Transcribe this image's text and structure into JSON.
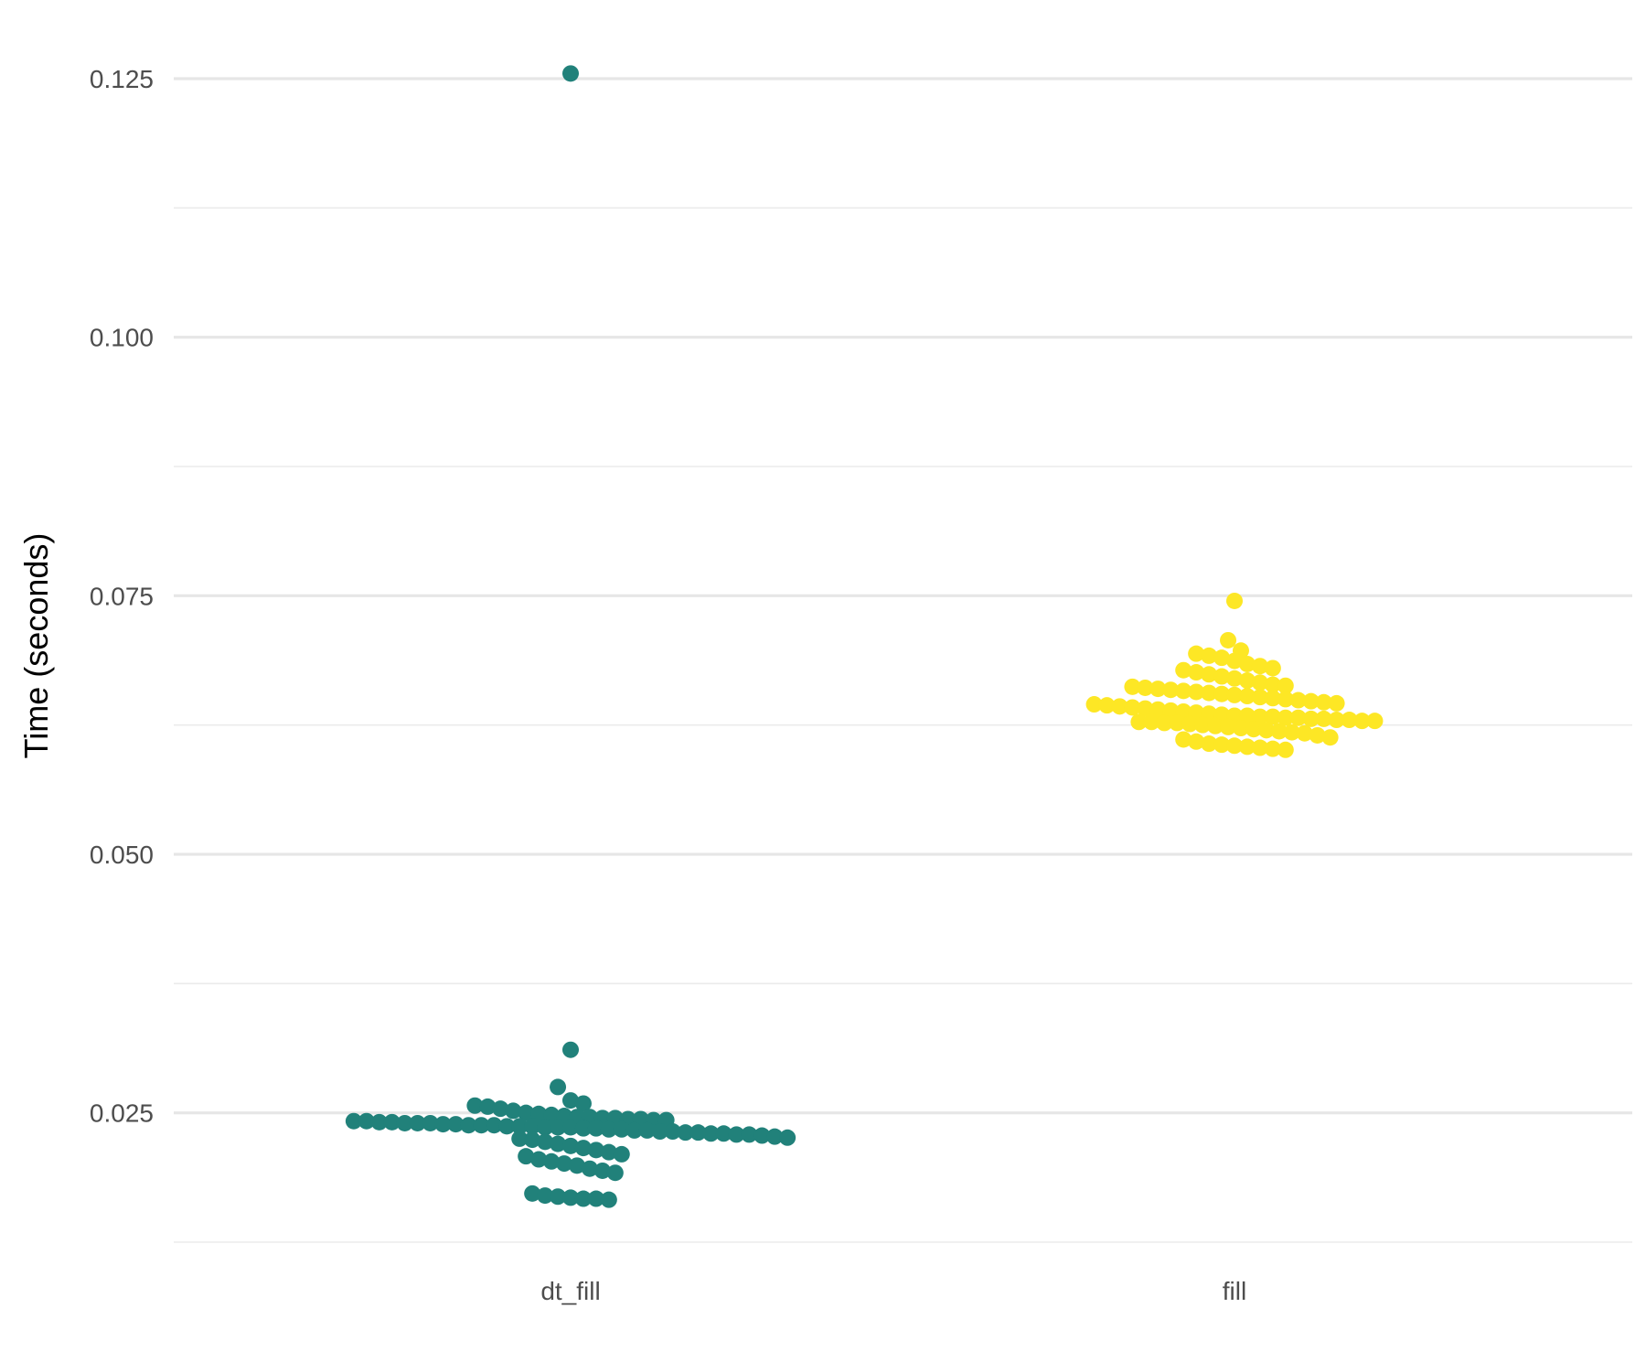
{
  "chart_data": {
    "type": "scatter",
    "subtype": "beeswarm",
    "title": "",
    "xlabel": "",
    "ylabel": "Time (seconds)",
    "ylim": [
      0.0125,
      0.128
    ],
    "y_ticks": [
      0.025,
      0.05,
      0.075,
      0.1,
      0.125
    ],
    "y_tick_labels": [
      "0.025",
      "0.050",
      "0.075",
      "0.100",
      "0.125"
    ],
    "y_minor_ticks": [
      0.0125,
      0.0375,
      0.0625,
      0.0875,
      0.1125
    ],
    "grid": true,
    "legend": "none",
    "categories": [
      "dt_fill",
      "fill"
    ],
    "colors": [
      "#21817a",
      "#fde725"
    ],
    "series": [
      {
        "category": "dt_fill",
        "values": [
          0.1255,
          0.0311,
          0.0275,
          0.0262,
          0.0259,
          0.0257,
          0.0256,
          0.0254,
          0.0252,
          0.025,
          0.0249,
          0.0248,
          0.0247,
          0.0246,
          0.0246,
          0.0245,
          0.0245,
          0.0244,
          0.0244,
          0.0243,
          0.0243,
          0.0242,
          0.0242,
          0.0241,
          0.0241,
          0.024,
          0.024,
          0.024,
          0.0239,
          0.0239,
          0.0238,
          0.0238,
          0.0238,
          0.0237,
          0.0237,
          0.0237,
          0.0236,
          0.0236,
          0.0236,
          0.0235,
          0.0235,
          0.0234,
          0.0234,
          0.0233,
          0.0233,
          0.0232,
          0.0232,
          0.0231,
          0.0231,
          0.023,
          0.023,
          0.0229,
          0.0229,
          0.0228,
          0.0227,
          0.0226,
          0.0225,
          0.0224,
          0.0222,
          0.022,
          0.0218,
          0.0216,
          0.0214,
          0.0212,
          0.021,
          0.0208,
          0.0205,
          0.0203,
          0.0201,
          0.0199,
          0.0196,
          0.0194,
          0.0192,
          0.0172,
          0.017,
          0.0169,
          0.0168,
          0.0167,
          0.0167,
          0.0166
        ]
      },
      {
        "category": "fill",
        "values": [
          0.0745,
          0.0707,
          0.0697,
          0.0694,
          0.0692,
          0.069,
          0.0687,
          0.0684,
          0.0682,
          0.068,
          0.0678,
          0.0676,
          0.0674,
          0.0672,
          0.067,
          0.0668,
          0.0666,
          0.0664,
          0.0663,
          0.0662,
          0.0661,
          0.066,
          0.0659,
          0.0658,
          0.0657,
          0.0656,
          0.0655,
          0.0654,
          0.0653,
          0.0652,
          0.0651,
          0.065,
          0.0649,
          0.0648,
          0.0647,
          0.0646,
          0.0645,
          0.0644,
          0.0643,
          0.0642,
          0.0641,
          0.064,
          0.0639,
          0.0638,
          0.0637,
          0.0636,
          0.0635,
          0.0634,
          0.0634,
          0.0633,
          0.0633,
          0.0632,
          0.0632,
          0.0631,
          0.0631,
          0.063,
          0.063,
          0.0629,
          0.0629,
          0.0628,
          0.0628,
          0.0627,
          0.0627,
          0.0626,
          0.0625,
          0.0624,
          0.0623,
          0.0622,
          0.0621,
          0.062,
          0.0619,
          0.0618,
          0.0617,
          0.0615,
          0.0613,
          0.0611,
          0.0609,
          0.0607,
          0.0606,
          0.0605,
          0.0604,
          0.0603,
          0.0602,
          0.0601
        ]
      }
    ]
  }
}
